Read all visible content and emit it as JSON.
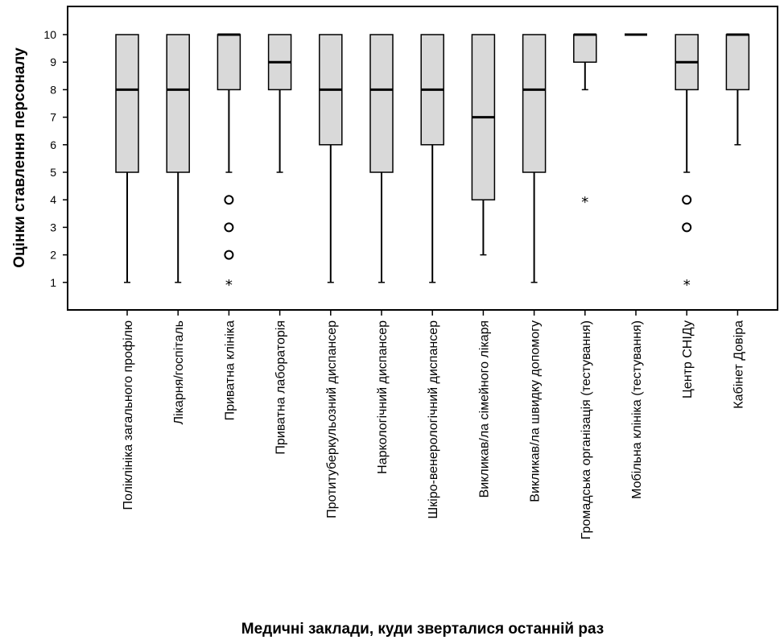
{
  "chart_data": {
    "type": "box",
    "ylabel": "Оцінки ставлення персоналу",
    "xlabel": "Медичні заклади, куди зверталися останній раз",
    "ylim": [
      0,
      11
    ],
    "yticks": [
      1,
      2,
      3,
      4,
      5,
      6,
      7,
      8,
      9,
      10
    ],
    "grid": false,
    "categories": [
      "Поліклініка загального профілю",
      "Лікарня/госпіталь",
      "Приватна клініка",
      "Приватна лабораторія",
      "Протитуберкульозний диспансер",
      "Наркологічний диспансер",
      "Шкіро-венерологічний диспансер",
      "Викликав/ла сімейного лікаря",
      "Викликав/ла швидку допомогу",
      "Громадська організація (тестування)",
      "Мобільна клініка (тестування)",
      "Центр СНІДу",
      "Кабінет Довіра"
    ],
    "boxes": [
      {
        "min": 1,
        "q1": 5,
        "median": 8,
        "q3": 10,
        "max": 10,
        "outliers": [],
        "extremes": []
      },
      {
        "min": 1,
        "q1": 5,
        "median": 8,
        "q3": 10,
        "max": 10,
        "outliers": [],
        "extremes": []
      },
      {
        "min": 5,
        "q1": 8,
        "median": 10,
        "q3": 10,
        "max": 10,
        "outliers": [
          4,
          3,
          2
        ],
        "extremes": [
          1
        ]
      },
      {
        "min": 5,
        "q1": 8,
        "median": 9,
        "q3": 10,
        "max": 10,
        "outliers": [],
        "extremes": []
      },
      {
        "min": 1,
        "q1": 6,
        "median": 8,
        "q3": 10,
        "max": 10,
        "outliers": [],
        "extremes": []
      },
      {
        "min": 1,
        "q1": 5,
        "median": 8,
        "q3": 10,
        "max": 10,
        "outliers": [],
        "extremes": []
      },
      {
        "min": 1,
        "q1": 6,
        "median": 8,
        "q3": 10,
        "max": 10,
        "outliers": [],
        "extremes": []
      },
      {
        "min": 2,
        "q1": 4,
        "median": 7,
        "q3": 10,
        "max": 10,
        "outliers": [],
        "extremes": []
      },
      {
        "min": 1,
        "q1": 5,
        "median": 8,
        "q3": 10,
        "max": 10,
        "outliers": [],
        "extremes": []
      },
      {
        "min": 8,
        "q1": 9,
        "median": 10,
        "q3": 10,
        "max": 10,
        "outliers": [],
        "extremes": [
          4
        ]
      },
      {
        "min": 10,
        "q1": 10,
        "median": 10,
        "q3": 10,
        "max": 10,
        "outliers": [],
        "extremes": []
      },
      {
        "min": 5,
        "q1": 8,
        "median": 9,
        "q3": 10,
        "max": 10,
        "outliers": [
          4,
          3
        ],
        "extremes": [
          1
        ]
      },
      {
        "min": 6,
        "q1": 8,
        "median": 10,
        "q3": 10,
        "max": 10,
        "outliers": [],
        "extremes": []
      }
    ],
    "outlier_symbol": "o",
    "extreme_symbol": "*"
  }
}
